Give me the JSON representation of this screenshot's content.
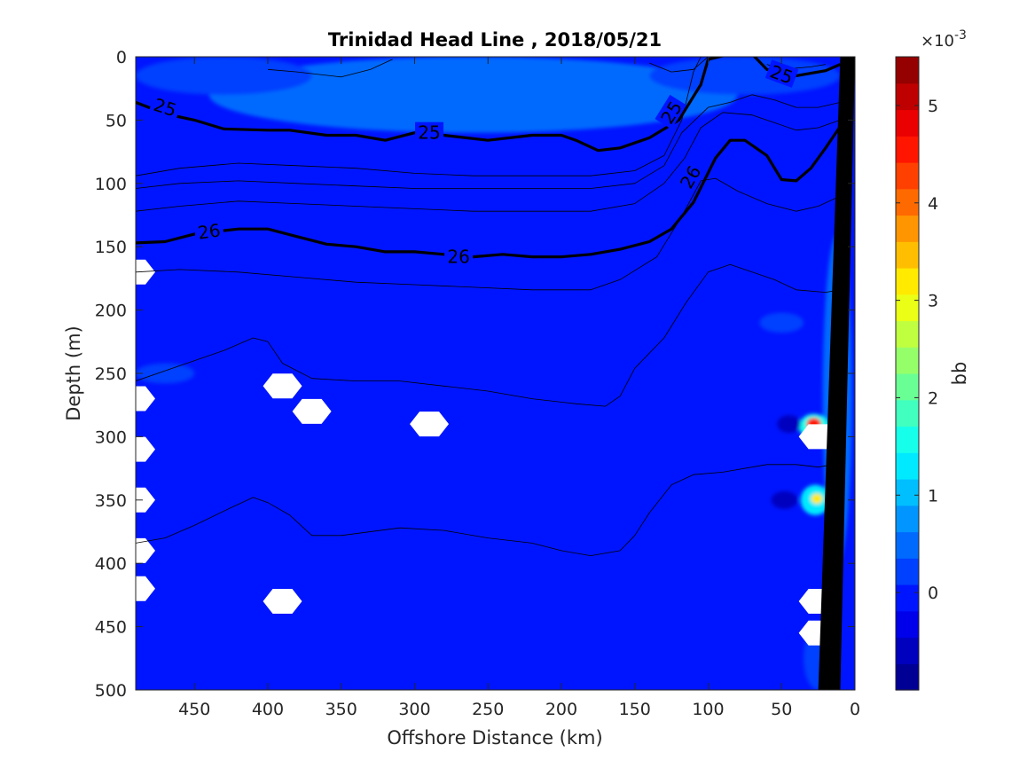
{
  "chart_data": {
    "type": "heatmap",
    "title": "Trinidad Head Line , 2018/05/21",
    "xlabel": "Offshore Distance (km)",
    "ylabel": "Depth (m)",
    "xlim": [
      490,
      0
    ],
    "ylim": [
      0,
      500
    ],
    "x_reversed": true,
    "y_reversed": true,
    "xticks": [
      450,
      400,
      350,
      300,
      250,
      200,
      150,
      100,
      50,
      0
    ],
    "yticks": [
      0,
      50,
      100,
      150,
      200,
      250,
      300,
      350,
      400,
      450,
      500
    ],
    "colorbar": {
      "label": "bb",
      "exponent_label": "×10",
      "exponent_power": "-3",
      "scale": 0.001,
      "range": [
        -1,
        5.5
      ],
      "ticks": [
        0,
        1,
        2,
        3,
        4,
        5
      ],
      "colormap": "jet",
      "levels": 24
    },
    "background_value": -0.15,
    "field_patches": [
      {
        "x": 260,
        "y": 30,
        "rx": 180,
        "ry": 30,
        "value": 0.4
      },
      {
        "x": 430,
        "y": 15,
        "rx": 60,
        "ry": 15,
        "value": 0.3
      },
      {
        "x": 75,
        "y": 15,
        "rx": 65,
        "ry": 15,
        "value": 0.35
      },
      {
        "x": 12,
        "y": 270,
        "rx": 10,
        "ry": 130,
        "value": 0.4
      },
      {
        "x": 50,
        "y": 210,
        "rx": 15,
        "ry": 8,
        "value": 0.3
      },
      {
        "x": 470,
        "y": 250,
        "rx": 20,
        "ry": 8,
        "value": 0.3
      },
      {
        "x": 28,
        "y": 292,
        "rx": 10,
        "ry": 10,
        "value": 1.5
      },
      {
        "x": 28,
        "y": 290,
        "rx": 5,
        "ry": 5,
        "value": 4.5
      },
      {
        "x": 27,
        "y": 350,
        "rx": 10,
        "ry": 12,
        "value": 1.4
      },
      {
        "x": 26,
        "y": 349,
        "rx": 4,
        "ry": 4,
        "value": 3.2
      },
      {
        "x": 45,
        "y": 290,
        "rx": 8,
        "ry": 7,
        "value": -0.5
      },
      {
        "x": 48,
        "y": 350,
        "rx": 9,
        "ry": 7,
        "value": -0.5
      },
      {
        "x": 25,
        "y": 475,
        "rx": 10,
        "ry": 25,
        "value": 0.3
      }
    ],
    "missing_points": [
      [
        390,
        260
      ],
      [
        370,
        280
      ],
      [
        290,
        290
      ],
      [
        390,
        430
      ],
      [
        490,
        170
      ],
      [
        490,
        270
      ],
      [
        490,
        310
      ],
      [
        490,
        350
      ],
      [
        490,
        390
      ],
      [
        490,
        420
      ],
      [
        25,
        430
      ],
      [
        25,
        455
      ],
      [
        25,
        300
      ]
    ],
    "contours": [
      {
        "value": 25,
        "bold": true,
        "points": [
          [
            490,
            36
          ],
          [
            470,
            45
          ],
          [
            450,
            50
          ],
          [
            430,
            57
          ],
          [
            400,
            58
          ],
          [
            385,
            58
          ],
          [
            360,
            62
          ],
          [
            340,
            62
          ],
          [
            320,
            66
          ],
          [
            300,
            60
          ],
          [
            280,
            62
          ],
          [
            250,
            66
          ],
          [
            220,
            62
          ],
          [
            200,
            62
          ],
          [
            190,
            66
          ],
          [
            175,
            74
          ],
          [
            160,
            72
          ],
          [
            140,
            64
          ],
          [
            120,
            50
          ],
          [
            105,
            22
          ],
          [
            100,
            2
          ],
          [
            85,
            -2
          ],
          [
            70,
            -2
          ],
          [
            60,
            10
          ],
          [
            40,
            15
          ],
          [
            20,
            11
          ],
          [
            10,
            6
          ]
        ]
      },
      {
        "value": 26,
        "bold": true,
        "points": [
          [
            490,
            147
          ],
          [
            470,
            146
          ],
          [
            450,
            140
          ],
          [
            420,
            136
          ],
          [
            400,
            136
          ],
          [
            380,
            142
          ],
          [
            360,
            148
          ],
          [
            340,
            150
          ],
          [
            320,
            154
          ],
          [
            300,
            154
          ],
          [
            280,
            156
          ],
          [
            260,
            158
          ],
          [
            240,
            156
          ],
          [
            220,
            158
          ],
          [
            200,
            158
          ],
          [
            180,
            156
          ],
          [
            160,
            152
          ],
          [
            140,
            146
          ],
          [
            125,
            136
          ],
          [
            110,
            115
          ],
          [
            95,
            80
          ],
          [
            85,
            66
          ],
          [
            75,
            66
          ],
          [
            60,
            78
          ],
          [
            50,
            97
          ],
          [
            40,
            98
          ],
          [
            30,
            88
          ],
          [
            20,
            72
          ],
          [
            10,
            55
          ]
        ]
      },
      {
        "value": null,
        "bold": false,
        "points": [
          [
            490,
            94
          ],
          [
            460,
            88
          ],
          [
            420,
            84
          ],
          [
            380,
            86
          ],
          [
            340,
            88
          ],
          [
            300,
            92
          ],
          [
            260,
            94
          ],
          [
            220,
            94
          ],
          [
            180,
            94
          ],
          [
            150,
            90
          ],
          [
            130,
            78
          ],
          [
            118,
            50
          ],
          [
            110,
            12
          ],
          [
            105,
            0
          ]
        ]
      },
      {
        "value": null,
        "bold": false,
        "points": [
          [
            490,
            104
          ],
          [
            460,
            100
          ],
          [
            420,
            98
          ],
          [
            380,
            100
          ],
          [
            340,
            102
          ],
          [
            300,
            104
          ],
          [
            260,
            104
          ],
          [
            220,
            104
          ],
          [
            180,
            104
          ],
          [
            150,
            100
          ],
          [
            130,
            86
          ],
          [
            118,
            60
          ],
          [
            100,
            40
          ],
          [
            85,
            36
          ],
          [
            70,
            30
          ],
          [
            55,
            34
          ],
          [
            40,
            40
          ],
          [
            25,
            40
          ],
          [
            10,
            36
          ]
        ]
      },
      {
        "value": null,
        "bold": false,
        "points": [
          [
            490,
            122
          ],
          [
            460,
            118
          ],
          [
            420,
            114
          ],
          [
            380,
            116
          ],
          [
            340,
            118
          ],
          [
            300,
            120
          ],
          [
            260,
            122
          ],
          [
            220,
            122
          ],
          [
            180,
            122
          ],
          [
            150,
            116
          ],
          [
            130,
            100
          ],
          [
            116,
            80
          ],
          [
            105,
            56
          ],
          [
            90,
            44
          ],
          [
            70,
            46
          ],
          [
            55,
            52
          ],
          [
            40,
            58
          ],
          [
            25,
            56
          ],
          [
            10,
            50
          ]
        ]
      },
      {
        "value": null,
        "bold": false,
        "points": [
          [
            490,
            170
          ],
          [
            460,
            168
          ],
          [
            420,
            170
          ],
          [
            380,
            174
          ],
          [
            340,
            178
          ],
          [
            300,
            180
          ],
          [
            260,
            182
          ],
          [
            220,
            184
          ],
          [
            180,
            184
          ],
          [
            160,
            176
          ],
          [
            135,
            158
          ],
          [
            118,
            126
          ],
          [
            105,
            98
          ],
          [
            95,
            96
          ],
          [
            80,
            106
          ],
          [
            60,
            116
          ],
          [
            40,
            122
          ],
          [
            25,
            118
          ],
          [
            10,
            110
          ]
        ]
      },
      {
        "value": null,
        "bold": false,
        "points": [
          [
            490,
            256
          ],
          [
            460,
            244
          ],
          [
            430,
            232
          ],
          [
            410,
            222
          ],
          [
            400,
            225
          ],
          [
            390,
            242
          ],
          [
            370,
            254
          ],
          [
            340,
            256
          ],
          [
            310,
            256
          ],
          [
            280,
            260
          ],
          [
            250,
            264
          ],
          [
            220,
            270
          ],
          [
            190,
            274
          ],
          [
            170,
            276
          ],
          [
            160,
            268
          ],
          [
            150,
            246
          ],
          [
            130,
            222
          ],
          [
            115,
            194
          ],
          [
            100,
            170
          ],
          [
            85,
            164
          ],
          [
            70,
            170
          ],
          [
            55,
            176
          ],
          [
            40,
            184
          ],
          [
            20,
            186
          ],
          [
            10,
            184
          ]
        ]
      },
      {
        "value": null,
        "bold": false,
        "points": [
          [
            490,
            384
          ],
          [
            470,
            380
          ],
          [
            450,
            370
          ],
          [
            425,
            356
          ],
          [
            410,
            348
          ],
          [
            400,
            352
          ],
          [
            385,
            362
          ],
          [
            370,
            378
          ],
          [
            350,
            378
          ],
          [
            310,
            372
          ],
          [
            280,
            374
          ],
          [
            250,
            380
          ],
          [
            220,
            384
          ],
          [
            200,
            390
          ],
          [
            180,
            394
          ],
          [
            160,
            390
          ],
          [
            150,
            378
          ],
          [
            140,
            360
          ],
          [
            125,
            338
          ],
          [
            110,
            330
          ],
          [
            90,
            328
          ],
          [
            60,
            322
          ],
          [
            40,
            322
          ],
          [
            25,
            324
          ],
          [
            15,
            322
          ]
        ]
      },
      {
        "value": null,
        "bold": false,
        "points": [
          [
            400,
            10
          ],
          [
            380,
            12
          ],
          [
            350,
            16
          ],
          [
            330,
            10
          ],
          [
            315,
            2
          ]
        ]
      },
      {
        "value": null,
        "bold": false,
        "points": [
          [
            140,
            5
          ],
          [
            125,
            12
          ],
          [
            110,
            10
          ],
          [
            100,
            0
          ]
        ]
      },
      {
        "value": null,
        "bold": false,
        "points": [
          [
            60,
            6
          ],
          [
            50,
            10
          ],
          [
            30,
            8
          ],
          [
            20,
            6
          ]
        ]
      }
    ],
    "contour_labels": [
      {
        "text": "25",
        "x": 470,
        "y": 40,
        "angle": 18
      },
      {
        "text": "25",
        "x": 290,
        "y": 60,
        "angle": 0
      },
      {
        "text": "25",
        "x": 125,
        "y": 44,
        "angle": -58
      },
      {
        "text": "25",
        "x": 50,
        "y": 14,
        "angle": 20
      },
      {
        "text": "26",
        "x": 440,
        "y": 138,
        "angle": -8
      },
      {
        "text": "26",
        "x": 270,
        "y": 158,
        "angle": 0
      },
      {
        "text": "26",
        "x": 112,
        "y": 95,
        "angle": -60
      }
    ],
    "land_mask": [
      [
        0,
        0
      ],
      [
        10,
        500
      ],
      [
        25,
        500
      ],
      [
        10,
        0
      ]
    ]
  }
}
